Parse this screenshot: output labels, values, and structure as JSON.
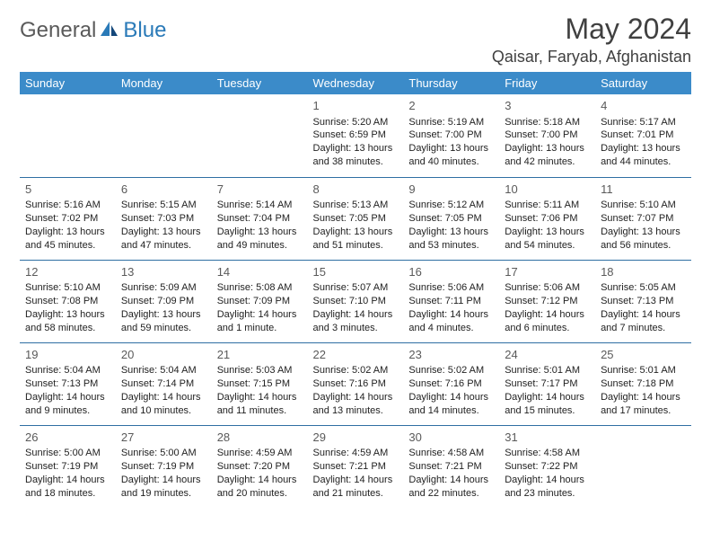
{
  "logo": {
    "part1": "General",
    "part2": "Blue"
  },
  "title": "May 2024",
  "location": "Qaisar, Faryab, Afghanistan",
  "colors": {
    "header_bg": "#3b8bc9",
    "header_text": "#ffffff",
    "border": "#2f6fa3",
    "title_color": "#404040",
    "logo_gray": "#5a5a5a",
    "logo_blue": "#2a7ab8"
  },
  "weekdays": [
    "Sunday",
    "Monday",
    "Tuesday",
    "Wednesday",
    "Thursday",
    "Friday",
    "Saturday"
  ],
  "weeks": [
    [
      null,
      null,
      null,
      {
        "n": "1",
        "sr": "5:20 AM",
        "ss": "6:59 PM",
        "dl": "13 hours and 38 minutes."
      },
      {
        "n": "2",
        "sr": "5:19 AM",
        "ss": "7:00 PM",
        "dl": "13 hours and 40 minutes."
      },
      {
        "n": "3",
        "sr": "5:18 AM",
        "ss": "7:00 PM",
        "dl": "13 hours and 42 minutes."
      },
      {
        "n": "4",
        "sr": "5:17 AM",
        "ss": "7:01 PM",
        "dl": "13 hours and 44 minutes."
      }
    ],
    [
      {
        "n": "5",
        "sr": "5:16 AM",
        "ss": "7:02 PM",
        "dl": "13 hours and 45 minutes."
      },
      {
        "n": "6",
        "sr": "5:15 AM",
        "ss": "7:03 PM",
        "dl": "13 hours and 47 minutes."
      },
      {
        "n": "7",
        "sr": "5:14 AM",
        "ss": "7:04 PM",
        "dl": "13 hours and 49 minutes."
      },
      {
        "n": "8",
        "sr": "5:13 AM",
        "ss": "7:05 PM",
        "dl": "13 hours and 51 minutes."
      },
      {
        "n": "9",
        "sr": "5:12 AM",
        "ss": "7:05 PM",
        "dl": "13 hours and 53 minutes."
      },
      {
        "n": "10",
        "sr": "5:11 AM",
        "ss": "7:06 PM",
        "dl": "13 hours and 54 minutes."
      },
      {
        "n": "11",
        "sr": "5:10 AM",
        "ss": "7:07 PM",
        "dl": "13 hours and 56 minutes."
      }
    ],
    [
      {
        "n": "12",
        "sr": "5:10 AM",
        "ss": "7:08 PM",
        "dl": "13 hours and 58 minutes."
      },
      {
        "n": "13",
        "sr": "5:09 AM",
        "ss": "7:09 PM",
        "dl": "13 hours and 59 minutes."
      },
      {
        "n": "14",
        "sr": "5:08 AM",
        "ss": "7:09 PM",
        "dl": "14 hours and 1 minute."
      },
      {
        "n": "15",
        "sr": "5:07 AM",
        "ss": "7:10 PM",
        "dl": "14 hours and 3 minutes."
      },
      {
        "n": "16",
        "sr": "5:06 AM",
        "ss": "7:11 PM",
        "dl": "14 hours and 4 minutes."
      },
      {
        "n": "17",
        "sr": "5:06 AM",
        "ss": "7:12 PM",
        "dl": "14 hours and 6 minutes."
      },
      {
        "n": "18",
        "sr": "5:05 AM",
        "ss": "7:13 PM",
        "dl": "14 hours and 7 minutes."
      }
    ],
    [
      {
        "n": "19",
        "sr": "5:04 AM",
        "ss": "7:13 PM",
        "dl": "14 hours and 9 minutes."
      },
      {
        "n": "20",
        "sr": "5:04 AM",
        "ss": "7:14 PM",
        "dl": "14 hours and 10 minutes."
      },
      {
        "n": "21",
        "sr": "5:03 AM",
        "ss": "7:15 PM",
        "dl": "14 hours and 11 minutes."
      },
      {
        "n": "22",
        "sr": "5:02 AM",
        "ss": "7:16 PM",
        "dl": "14 hours and 13 minutes."
      },
      {
        "n": "23",
        "sr": "5:02 AM",
        "ss": "7:16 PM",
        "dl": "14 hours and 14 minutes."
      },
      {
        "n": "24",
        "sr": "5:01 AM",
        "ss": "7:17 PM",
        "dl": "14 hours and 15 minutes."
      },
      {
        "n": "25",
        "sr": "5:01 AM",
        "ss": "7:18 PM",
        "dl": "14 hours and 17 minutes."
      }
    ],
    [
      {
        "n": "26",
        "sr": "5:00 AM",
        "ss": "7:19 PM",
        "dl": "14 hours and 18 minutes."
      },
      {
        "n": "27",
        "sr": "5:00 AM",
        "ss": "7:19 PM",
        "dl": "14 hours and 19 minutes."
      },
      {
        "n": "28",
        "sr": "4:59 AM",
        "ss": "7:20 PM",
        "dl": "14 hours and 20 minutes."
      },
      {
        "n": "29",
        "sr": "4:59 AM",
        "ss": "7:21 PM",
        "dl": "14 hours and 21 minutes."
      },
      {
        "n": "30",
        "sr": "4:58 AM",
        "ss": "7:21 PM",
        "dl": "14 hours and 22 minutes."
      },
      {
        "n": "31",
        "sr": "4:58 AM",
        "ss": "7:22 PM",
        "dl": "14 hours and 23 minutes."
      },
      null
    ]
  ],
  "labels": {
    "sunrise": "Sunrise: ",
    "sunset": "Sunset: ",
    "daylight": "Daylight: "
  }
}
